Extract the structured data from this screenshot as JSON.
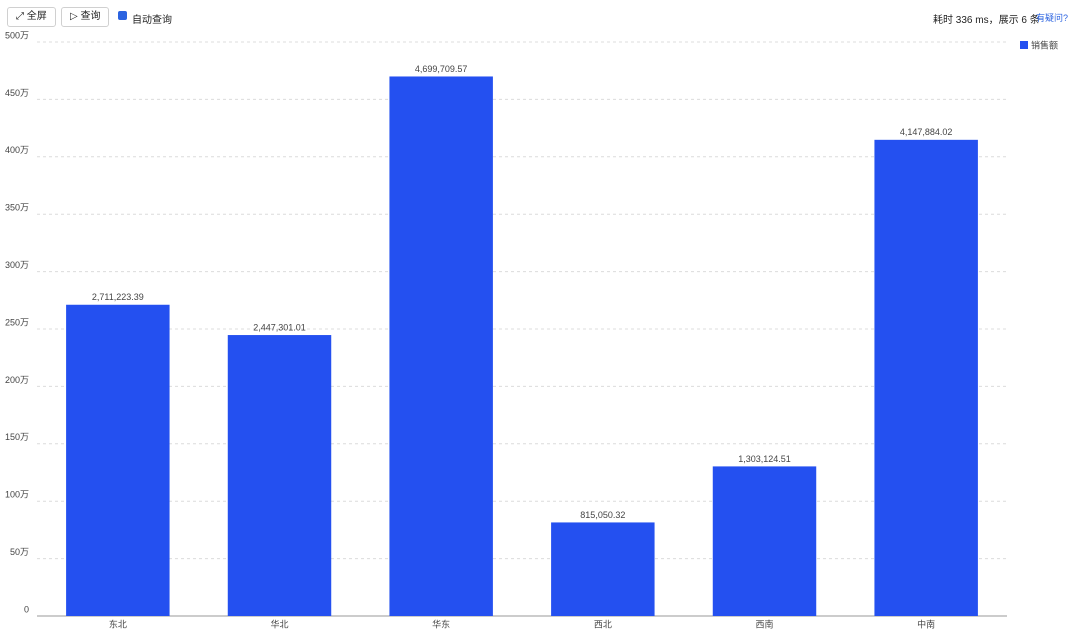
{
  "toolbar": {
    "fullscreen": "全屏",
    "query": "查询",
    "auto_query": "自动查询",
    "status": "耗时 336 ms，展示 6 条",
    "help": "有疑问?"
  },
  "chart_data": {
    "type": "bar",
    "categories": [
      "东北",
      "华北",
      "华东",
      "西北",
      "西南",
      "中南"
    ],
    "series": [
      {
        "name": "销售额",
        "color": "#2450f0",
        "values": [
          2711223.39,
          2447301.01,
          4699709.57,
          815050.32,
          1303124.51,
          4147884.02
        ],
        "value_labels": [
          "2,711,223.39",
          "2,447,301.01",
          "4,699,709.57",
          "815,050.32",
          "1,303,124.51",
          "4,147,884.02"
        ]
      }
    ],
    "ylim": [
      0,
      5000000
    ],
    "yticks": [
      0,
      {
        "value": 500000,
        "label": "50万"
      },
      {
        "value": 1000000,
        "label": "100万"
      },
      {
        "value": 1500000,
        "label": "150万"
      },
      {
        "value": 2000000,
        "label": "200万"
      },
      {
        "value": 2500000,
        "label": "250万"
      },
      {
        "value": 3000000,
        "label": "300万"
      },
      {
        "value": 3500000,
        "label": "350万"
      },
      {
        "value": 4000000,
        "label": "400万"
      },
      {
        "value": 4500000,
        "label": "450万"
      },
      {
        "value": 5000000,
        "label": "500万"
      }
    ],
    "grid": true,
    "legend": "top-right"
  }
}
